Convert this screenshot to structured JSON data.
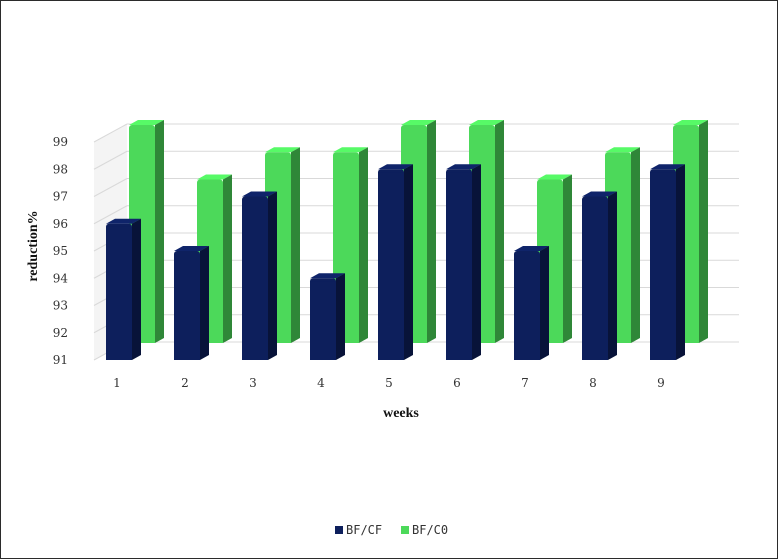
{
  "chart_data": {
    "type": "bar",
    "title": "",
    "xlabel": "weeks",
    "ylabel": "reduction%",
    "categories": [
      "1",
      "2",
      "3",
      "4",
      "5",
      "6",
      "7",
      "8",
      "9"
    ],
    "series": [
      {
        "name": "BF/CF",
        "color": "#0d1f5c",
        "values": [
          96,
          95,
          97,
          94,
          98,
          98,
          95,
          97,
          98
        ]
      },
      {
        "name": "BF/C0",
        "color": "#4cd95a",
        "values": [
          99,
          97,
          98,
          98,
          99,
          99,
          97,
          98,
          99
        ]
      }
    ],
    "ylim": [
      91,
      99
    ],
    "yticks": [
      91,
      92,
      93,
      94,
      95,
      96,
      97,
      98,
      99
    ],
    "grid": true,
    "legend_position": "bottom-center"
  }
}
